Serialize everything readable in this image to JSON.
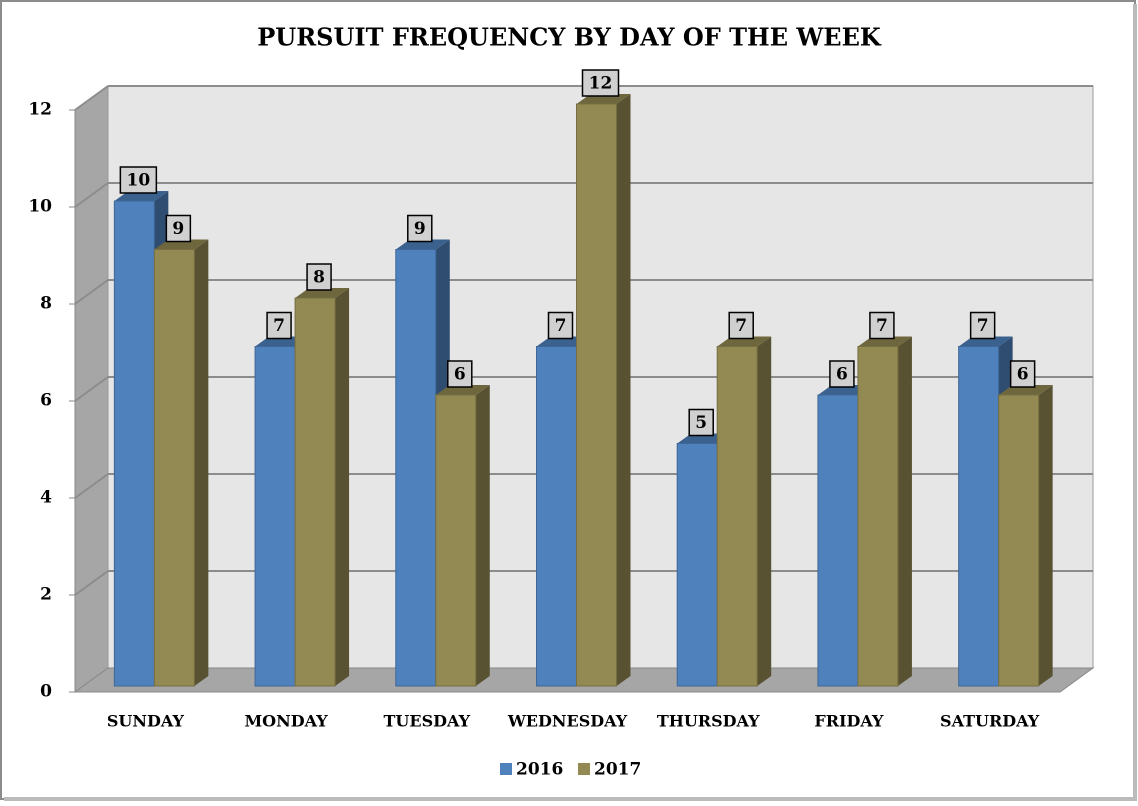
{
  "chart_data": {
    "type": "bar3d",
    "title": "PURSUIT FREQUENCY BY DAY OF THE WEEK",
    "categories": [
      "SUNDAY",
      "MONDAY",
      "TUESDAY",
      "WEDNESDAY",
      "THURSDAY",
      "FRIDAY",
      "SATURDAY"
    ],
    "series": [
      {
        "name": "2016",
        "color": "#4f81bd",
        "values": [
          10,
          7,
          9,
          7,
          5,
          6,
          7
        ]
      },
      {
        "name": "2017",
        "color": "#938953",
        "values": [
          9,
          8,
          6,
          12,
          7,
          7,
          6
        ]
      }
    ],
    "ylim": [
      0,
      12
    ],
    "yticks": [
      0,
      2,
      4,
      6,
      8,
      10,
      12
    ],
    "grid": true,
    "legend": "bottom"
  }
}
